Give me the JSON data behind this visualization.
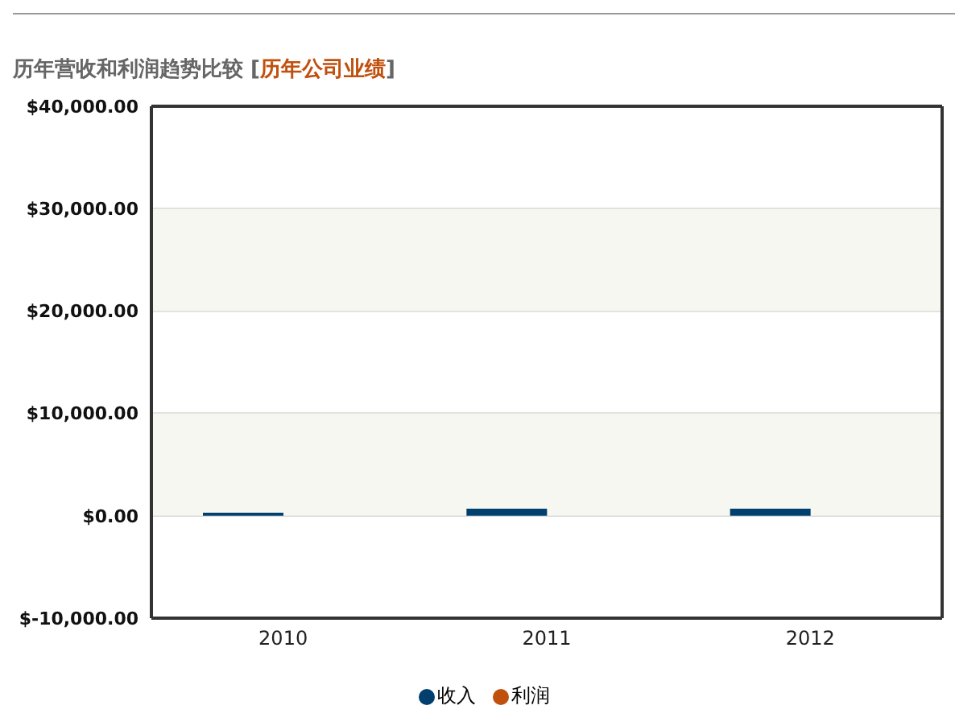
{
  "chart_data": {
    "type": "bar",
    "title": "历年营收和利润趋势比较",
    "subtitle": "[历年公司业绩]",
    "categories": [
      "2010",
      "2011",
      "2012"
    ],
    "series": [
      {
        "name": "收入",
        "color": "#003f6e",
        "values": [
          300,
          700,
          700
        ]
      },
      {
        "name": "利润",
        "color": "#c0500e",
        "values": [
          0,
          0,
          0
        ]
      }
    ],
    "ylim": [
      -10000,
      40000
    ],
    "yticks": [
      {
        "value": -10000,
        "label": "$-10,000.00"
      },
      {
        "value": 0,
        "label": "$0.00"
      },
      {
        "value": 10000,
        "label": "$10,000.00"
      },
      {
        "value": 20000,
        "label": "$20,000.00"
      },
      {
        "value": 30000,
        "label": "$30,000.00"
      },
      {
        "value": 40000,
        "label": "$40,000.00"
      }
    ],
    "bands": [
      {
        "axis": "y",
        "from": 0,
        "to": 10000,
        "color": "#f7f7f2"
      },
      {
        "axis": "y",
        "from": 20000,
        "to": 30000,
        "color": "#f7f7f2"
      }
    ],
    "grid": "y",
    "legend": "bottom"
  }
}
